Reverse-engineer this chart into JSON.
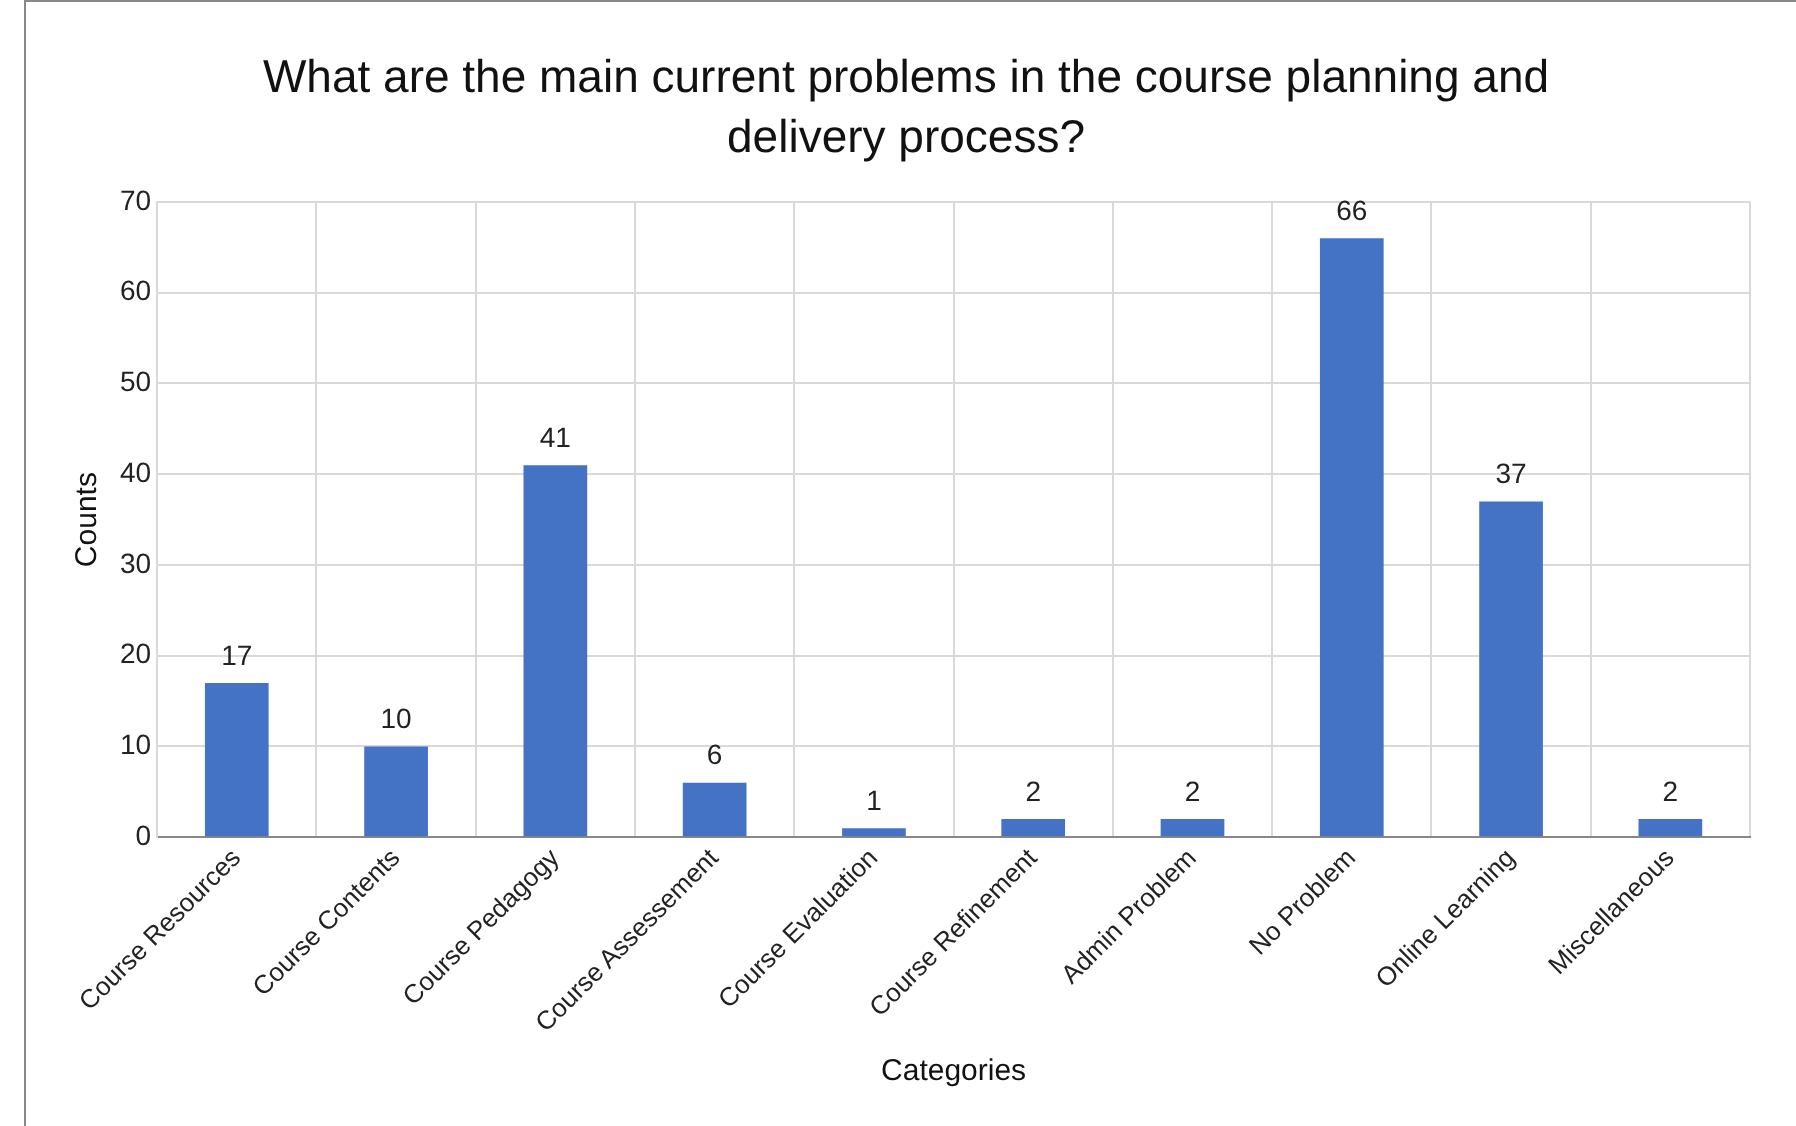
{
  "chart_data": {
    "type": "bar",
    "title": "What are the main current problems in the course planning and delivery process?",
    "xlabel": "Categories",
    "ylabel": "Counts",
    "categories": [
      "Course Resources",
      "Course Contents",
      "Course Pedagogy",
      "Course Assessement",
      "Course Evaluation",
      "Course Refinement",
      "Admin Problem",
      "No Problem",
      "Online Learning",
      "Miscellaneous"
    ],
    "values": [
      17,
      10,
      41,
      6,
      1,
      2,
      2,
      66,
      37,
      2
    ],
    "color": "#4472c4",
    "ylim": [
      0,
      70
    ],
    "yticks": [
      0,
      10,
      20,
      30,
      40,
      50,
      60,
      70
    ],
    "grid": true,
    "data_labels": true
  }
}
